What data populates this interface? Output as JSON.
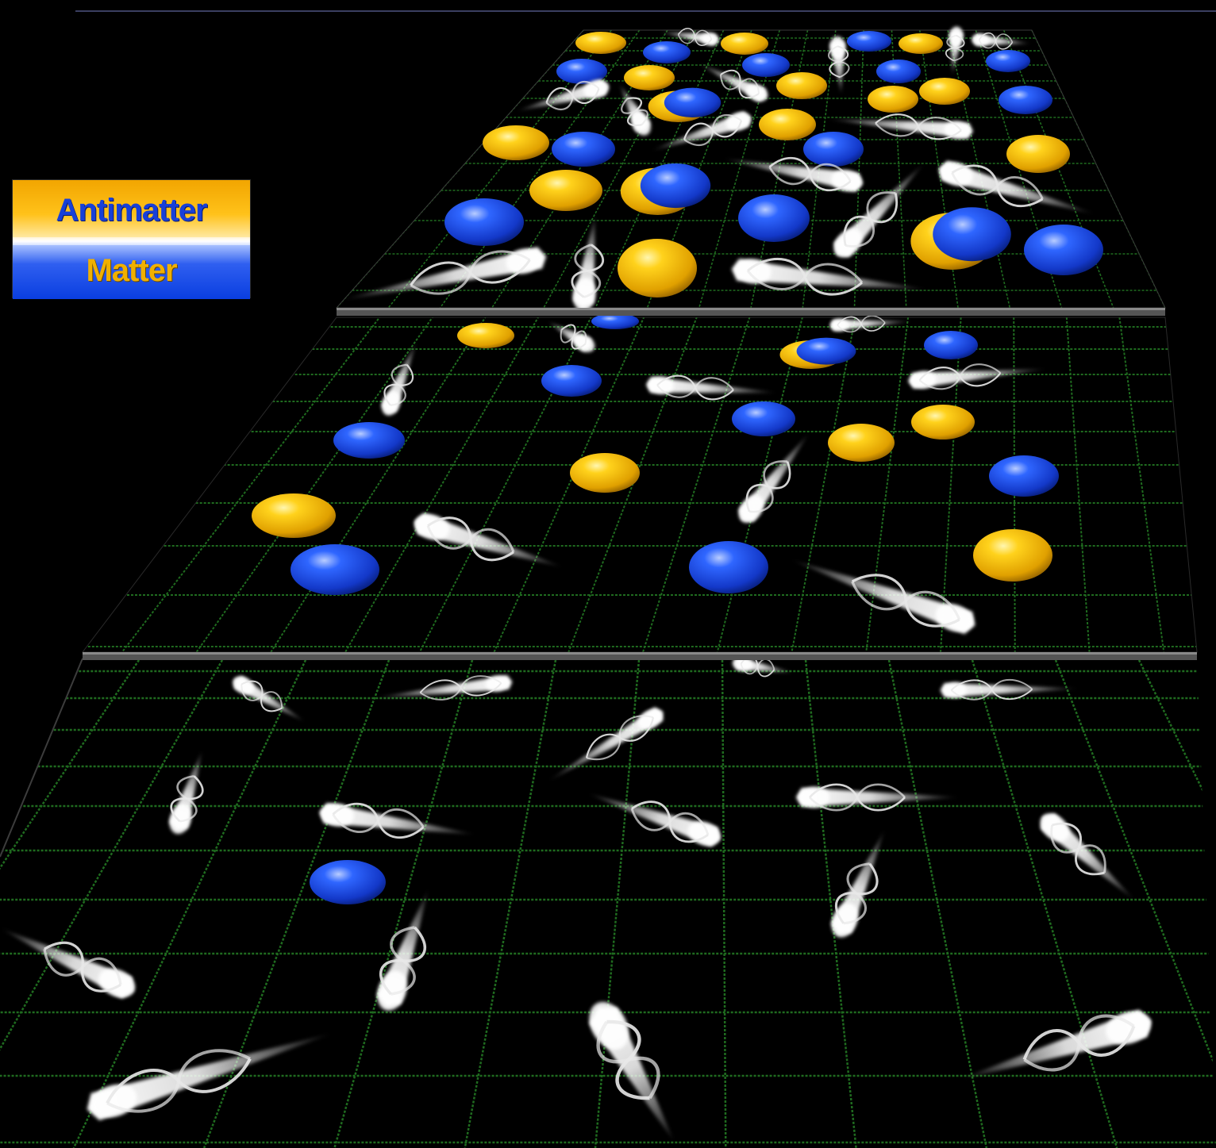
{
  "legend": {
    "antimatter_label": "Antimatter",
    "matter_label": "Matter",
    "antimatter_color": "#f5b800",
    "matter_color": "#1a45e0"
  },
  "colors": {
    "background": "#000000",
    "grid": "#1f6b1f",
    "plane_edge": "#5a5a5a",
    "particle_yellow": "#f5b800",
    "particle_blue": "#1a45e0",
    "photon": "#ffffff"
  }
}
